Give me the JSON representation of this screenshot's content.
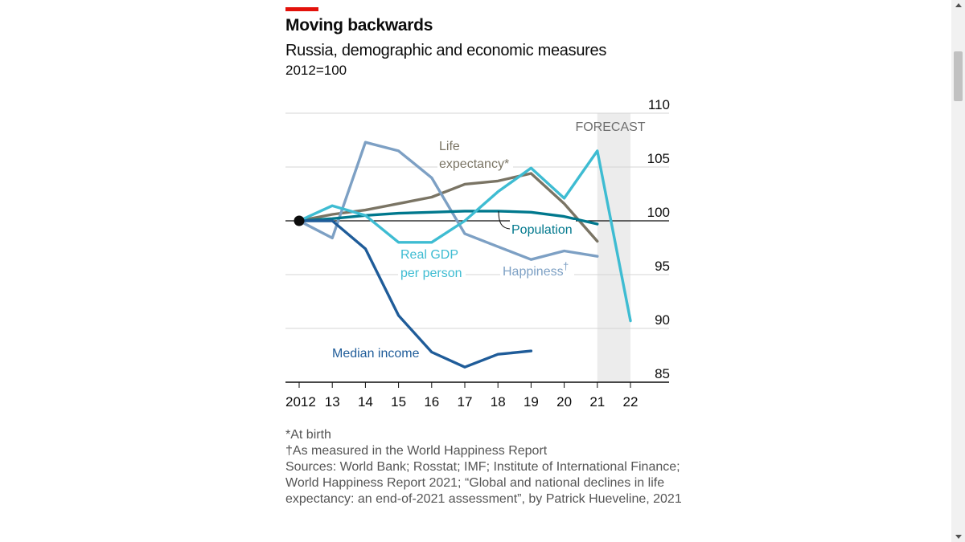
{
  "header": {
    "title": "Moving backwards",
    "subtitle": "Russia, demographic and economic measures",
    "unit": "2012=100"
  },
  "colors": {
    "accent": "#e3120b",
    "median_income": "#1f5c99",
    "real_gdp": "#3ebcd2",
    "population": "#00788d",
    "life_expectancy": "#7a7464",
    "happiness": "#7da0c4",
    "forecast_band": "#ececec"
  },
  "chart_data": {
    "type": "line",
    "title": "Moving backwards",
    "subtitle": "Russia, demographic and economic measures",
    "ylabel": "2012=100",
    "x": [
      2012,
      2013,
      2014,
      2015,
      2016,
      2017,
      2018,
      2019,
      2020,
      2021,
      2022
    ],
    "x_tick_labels": [
      "2012",
      "13",
      "14",
      "15",
      "16",
      "17",
      "18",
      "19",
      "20",
      "21",
      "22"
    ],
    "ylim": [
      85,
      110
    ],
    "y_ticks": [
      85,
      90,
      95,
      100,
      105,
      110
    ],
    "forecast_label": "FORECAST",
    "forecast_range": [
      2021,
      2022
    ],
    "series": [
      {
        "name": "Median income",
        "label": "Median income",
        "color_key": "median_income",
        "x": [
          2012,
          2013,
          2014,
          2015,
          2016,
          2017,
          2018,
          2019
        ],
        "values": [
          100,
          100,
          97.4,
          91.2,
          87.8,
          86.4,
          87.6,
          87.9
        ]
      },
      {
        "name": "Real GDP per person",
        "label_lines": [
          "Real GDP",
          "per person"
        ],
        "color_key": "real_gdp",
        "x": [
          2012,
          2013,
          2014,
          2015,
          2016,
          2017,
          2018,
          2019,
          2020,
          2021,
          2022
        ],
        "values": [
          100,
          101.4,
          100.5,
          98,
          98,
          100,
          102.7,
          104.9,
          102.1,
          106.5,
          90.7
        ]
      },
      {
        "name": "Population",
        "label": "Population",
        "color_key": "population",
        "x": [
          2012,
          2013,
          2014,
          2015,
          2016,
          2017,
          2018,
          2019,
          2020,
          2021
        ],
        "values": [
          100,
          100.2,
          100.5,
          100.7,
          100.8,
          100.9,
          100.9,
          100.8,
          100.4,
          99.7
        ]
      },
      {
        "name": "Life expectancy",
        "label_lines": [
          "Life",
          "expectancy*"
        ],
        "color_key": "life_expectancy",
        "x": [
          2012,
          2013,
          2014,
          2015,
          2016,
          2017,
          2018,
          2019,
          2020,
          2021
        ],
        "values": [
          100,
          100.6,
          101,
          101.6,
          102.2,
          103.4,
          103.7,
          104.4,
          101.6,
          98.1
        ]
      },
      {
        "name": "Happiness",
        "label": "Happiness",
        "label_suffix": "†",
        "color_key": "happiness",
        "x": [
          2012,
          2013,
          2014,
          2015,
          2016,
          2017,
          2018,
          2019,
          2020,
          2021
        ],
        "values": [
          100,
          98.4,
          107.3,
          106.5,
          104,
          98.8,
          97.6,
          96.4,
          97.2,
          96.7
        ]
      }
    ]
  },
  "footnotes": {
    "note1": "*At birth",
    "note2_symbol": "†",
    "note2": "As measured in the World Happiness Report",
    "sources_line1": "Sources: World Bank; Rosstat; IMF; Institute of International Finance;",
    "sources_line2": "World Happiness Report 2021; “Global and national declines in life",
    "sources_line3": "expectancy: an end-of-2021 assessment”, by Patrick Hueveline, 2021"
  }
}
